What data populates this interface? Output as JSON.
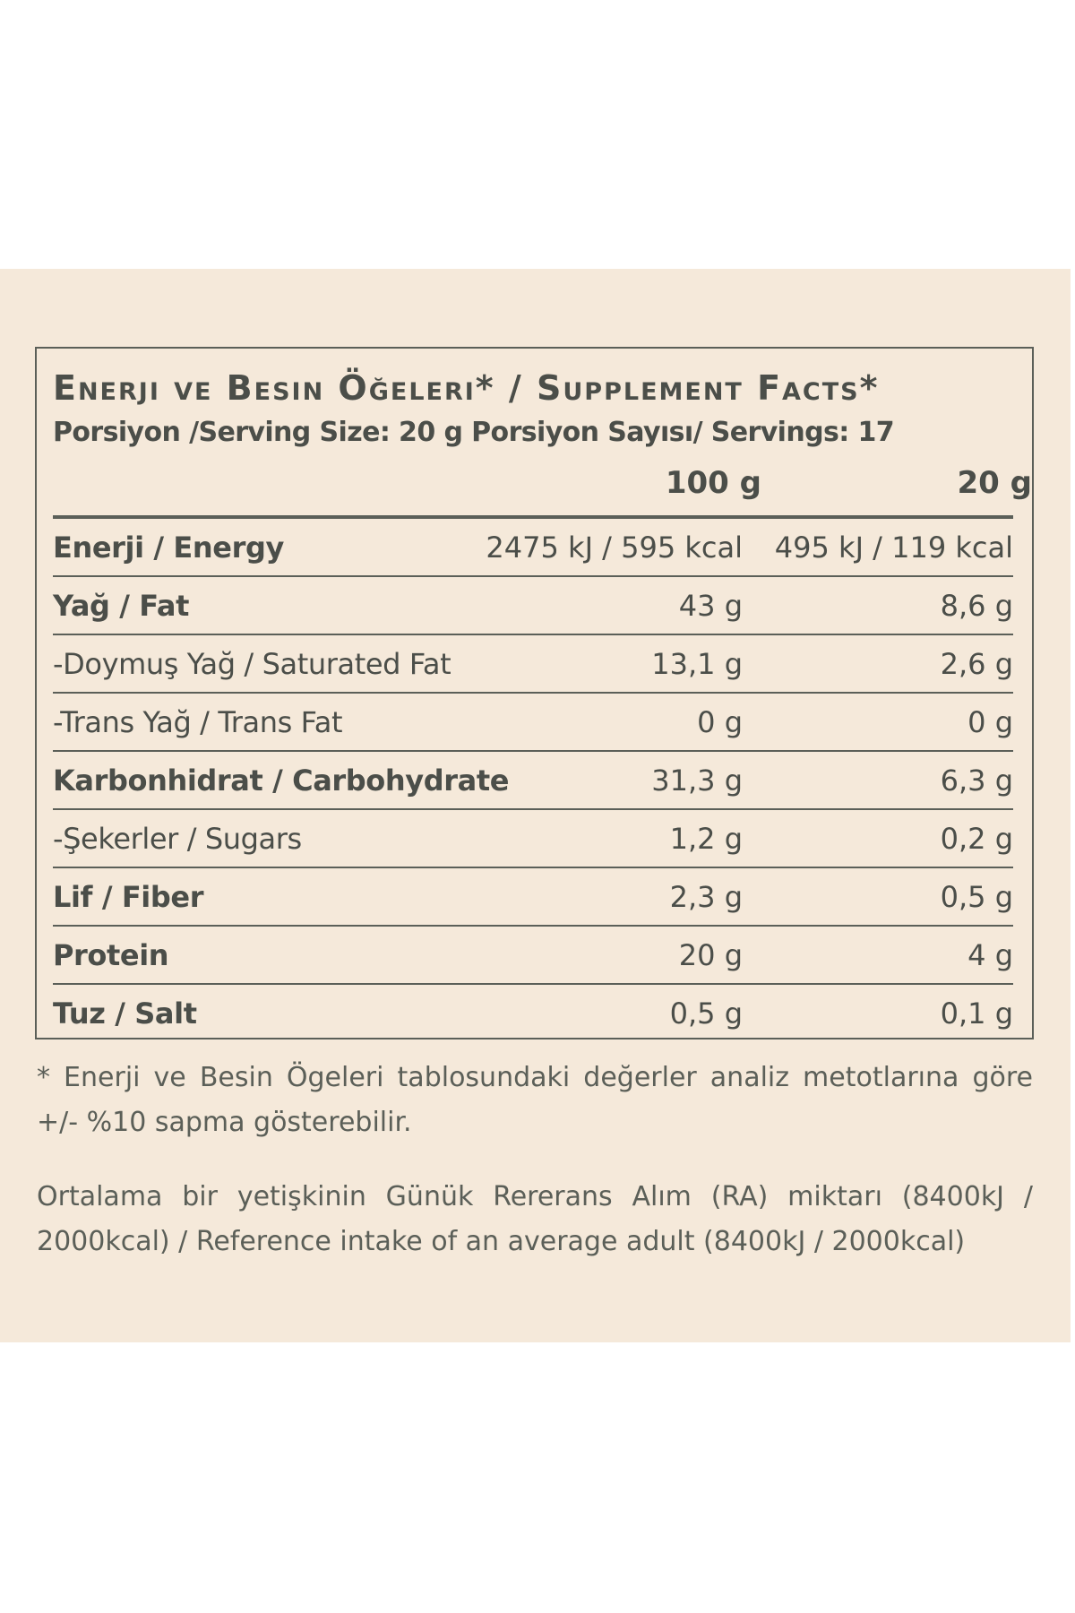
{
  "facts": {
    "title": "Enerji ve Besin Öğeleri* / Supplement Facts*",
    "serving": "Porsiyon /Serving Size: 20 g Porsiyon Sayısı/ Servings: 17",
    "columns": [
      "100 g",
      "20 g"
    ],
    "rows": [
      {
        "label": "Enerji / Energy",
        "v100": "2475 kJ / 595 kcal",
        "v20": "495 kJ / 119 kcal"
      },
      {
        "label": "Yağ / Fat",
        "v100": "43 g",
        "v20": "8,6 g"
      },
      {
        "label": "-Doymuş Yağ / Saturated Fat",
        "v100": "13,1 g",
        "v20": "2,6 g"
      },
      {
        "label": "-Trans Yağ / Trans Fat",
        "v100": "0 g",
        "v20": "0 g"
      },
      {
        "label": "Karbonhidrat / Carbohydrate",
        "v100": "31,3 g",
        "v20": "6,3 g"
      },
      {
        "label": "-Şekerler / Sugars",
        "v100": "1,2 g",
        "v20": "0,2 g"
      },
      {
        "label": "Lif / Fiber",
        "v100": "2,3 g",
        "v20": "0,5 g"
      },
      {
        "label": "Protein",
        "v100": "20 g",
        "v20": "4 g"
      },
      {
        "label": "Tuz / Salt",
        "v100": "0,5 g",
        "v20": "0,1 g"
      }
    ]
  },
  "notes": {
    "deviation": "* Enerji ve Besin Ögeleri tablosundaki değerler analiz metotlarına göre +/- %10 sapma gösterebilir.",
    "reference": "Ortalama bir yetişkinin Günük Rererans Alım (RA) miktarı (8400kJ / 2000kcal) / Reference intake of an average adult (8400kJ / 2000kcal)"
  },
  "colors": {
    "panel_background": "#f5e9da",
    "text": "#4b4e49",
    "rule": "#5b5f58"
  }
}
